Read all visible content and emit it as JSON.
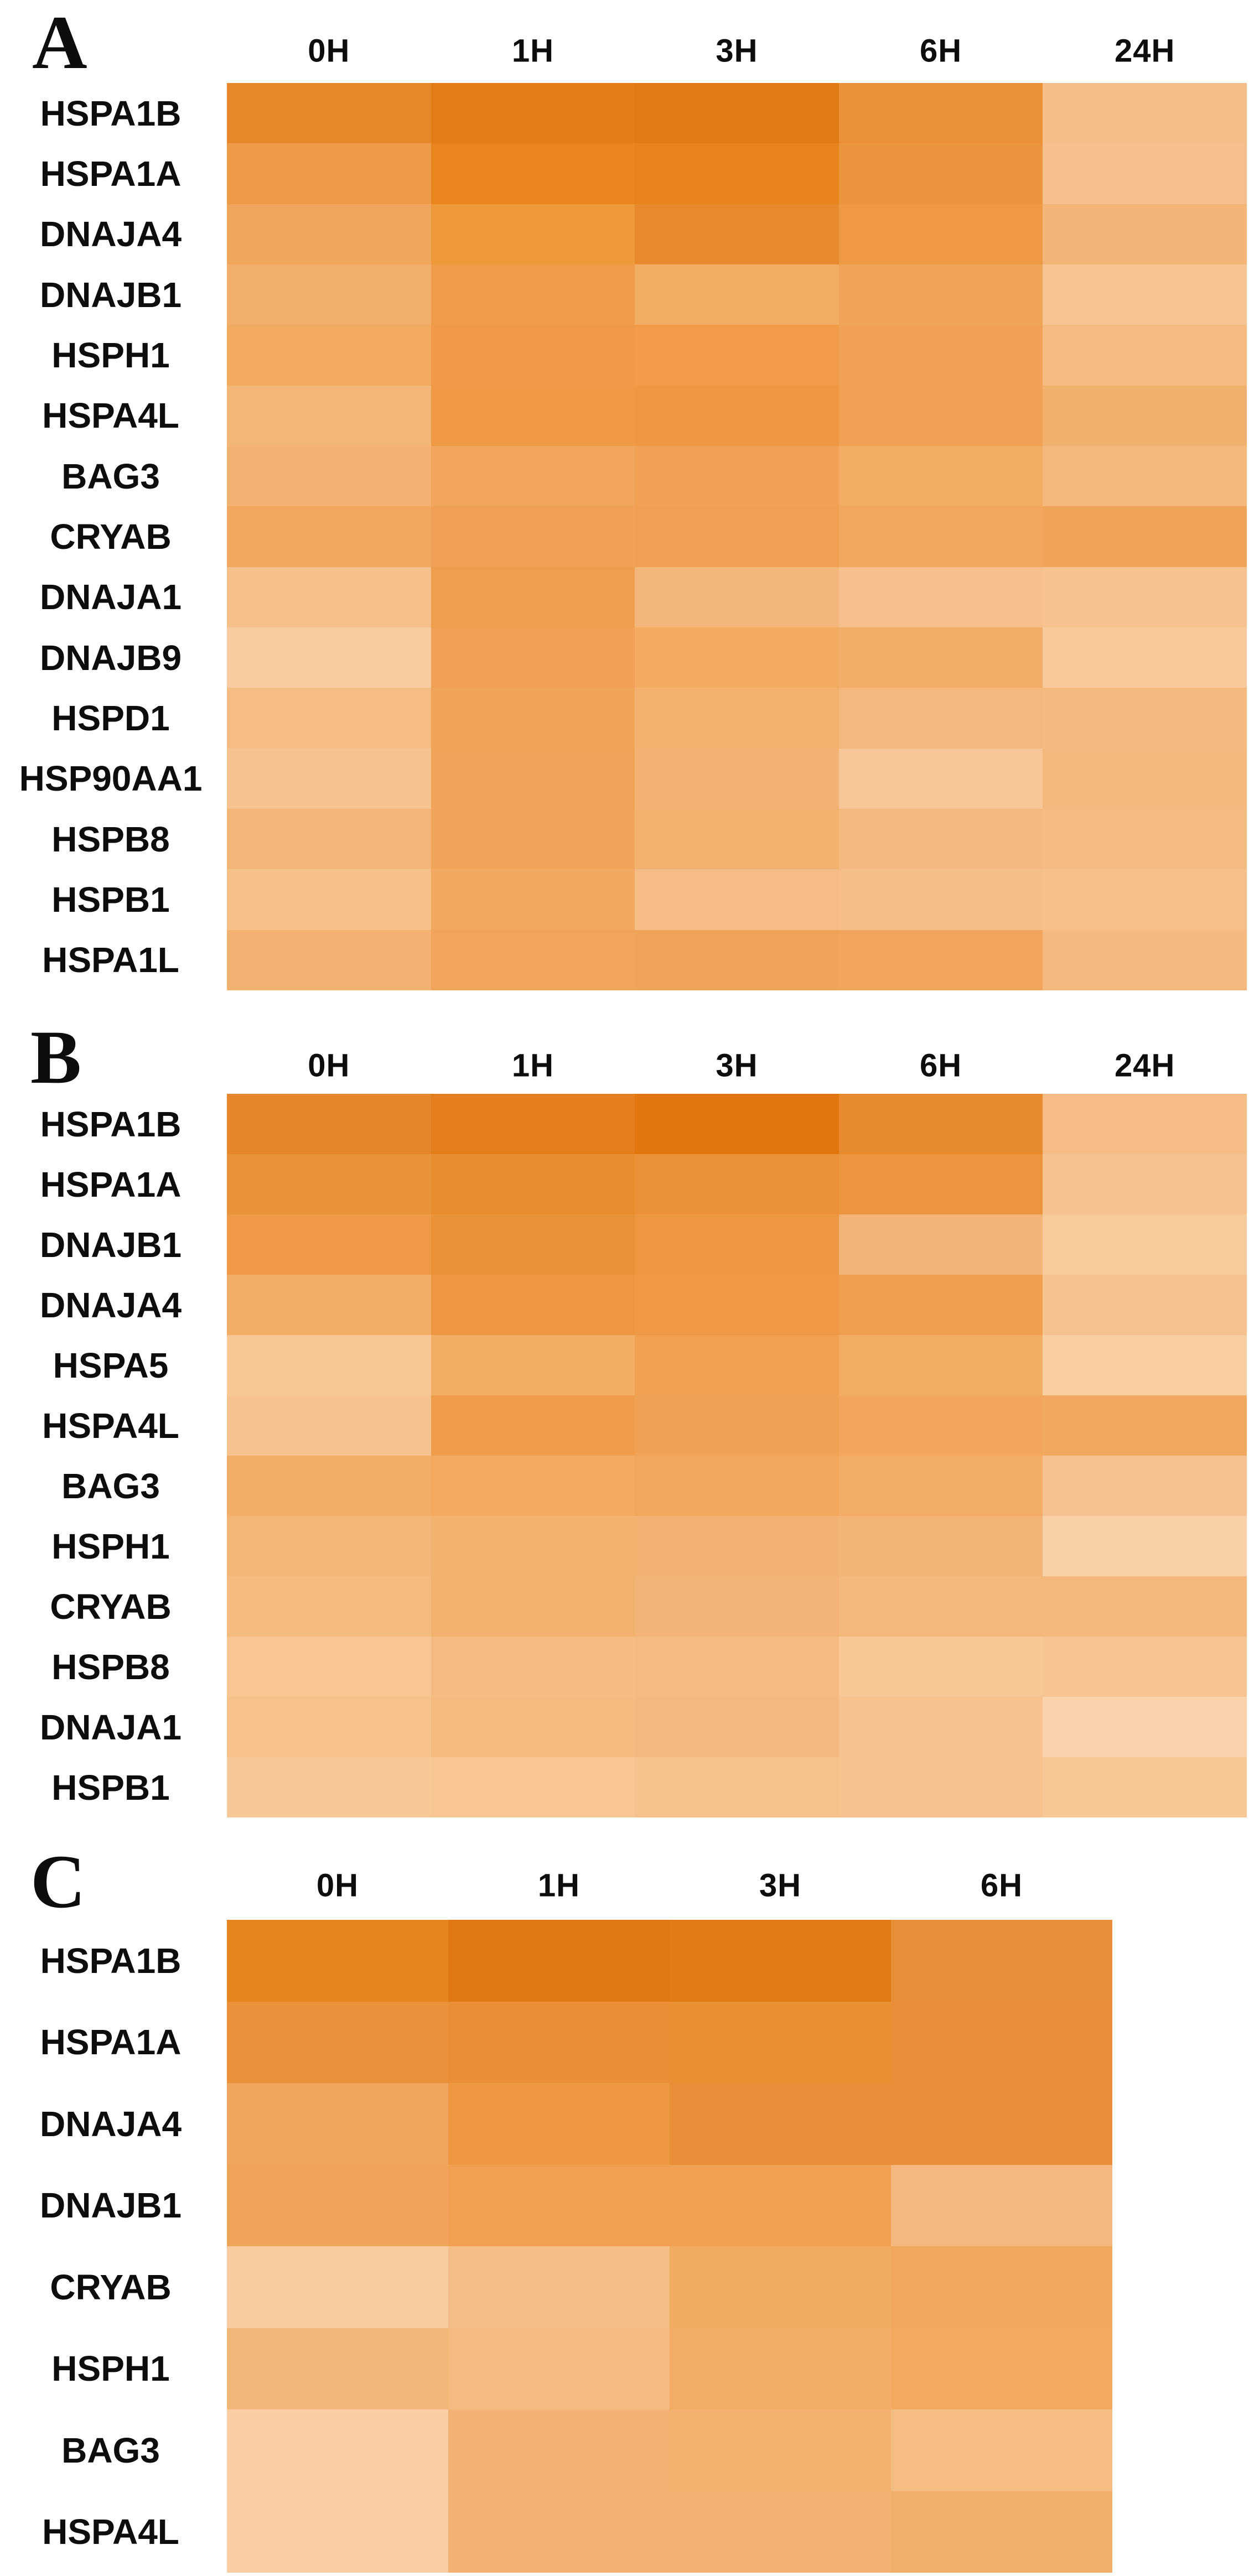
{
  "figure": {
    "panels": [
      "A",
      "B",
      "C"
    ]
  },
  "chart_data": [
    {
      "type": "heatmap",
      "panel": "A",
      "title": "",
      "legend": "none",
      "columns": [
        "0H",
        "1H",
        "3H",
        "6H",
        "24H"
      ],
      "rows": [
        "HSPA1B",
        "HSPA1A",
        "DNAJA4",
        "DNAJB1",
        "HSPH1",
        "HSPA4L",
        "BAG3",
        "CRYAB",
        "DNAJA1",
        "DNAJB9",
        "HSPD1",
        "HSP90AA1",
        "HSPB8",
        "HSPB1",
        "HSPA1L"
      ],
      "cell_colors": [
        [
          "#E8862A",
          "#E27D18",
          "#E17A12",
          "#EA9138",
          "#F5BD87"
        ],
        [
          "#EE9B49",
          "#E8851F",
          "#E6831C",
          "#EB9440",
          "#F5BE8A"
        ],
        [
          "#F0A55C",
          "#ED9839",
          "#E9892E",
          "#EE9A45",
          "#F3B478"
        ],
        [
          "#F2AE6B",
          "#EF9C48",
          "#F2AD65",
          "#F0A458",
          "#F6C491"
        ],
        [
          "#F2AA61",
          "#EE9A48",
          "#EF9B47",
          "#F0A153",
          "#F4BA80"
        ],
        [
          "#F4B677",
          "#EE9A44",
          "#EE9841",
          "#F0A153",
          "#F2B06E"
        ],
        [
          "#F3B272",
          "#F0A45C",
          "#F0A153",
          "#F2AC64",
          "#F4B87B"
        ],
        [
          "#F1A75F",
          "#F0A155",
          "#F0A052",
          "#F1A75E",
          "#F0A458"
        ],
        [
          "#F6C08A",
          "#EF9E4E",
          "#F4B77B",
          "#F6BF8C",
          "#F6C38F"
        ],
        [
          "#F8CCA0",
          "#F0A155",
          "#F2AB61",
          "#F2AE69",
          "#F8C99B"
        ],
        [
          "#F5BC84",
          "#F0A458",
          "#F3B170",
          "#F4B77E",
          "#F4B97E"
        ],
        [
          "#F6C28F",
          "#F0A45A",
          "#F3B271",
          "#F7C697",
          "#F4B87C"
        ],
        [
          "#F4B678",
          "#F0A45A",
          "#F3B170",
          "#F4B97E",
          "#F5BC82"
        ],
        [
          "#F6C189",
          "#F1A860",
          "#F5BC85",
          "#F5BD87",
          "#F5BF8A"
        ],
        [
          "#F3B272",
          "#F0A45C",
          "#F0A459",
          "#F0A45C",
          "#F4B97E"
        ]
      ]
    },
    {
      "type": "heatmap",
      "panel": "B",
      "title": "",
      "legend": "none",
      "columns": [
        "0H",
        "1H",
        "3H",
        "6H",
        "24H"
      ],
      "rows": [
        "HSPA1B",
        "HSPA1A",
        "DNAJB1",
        "DNAJA4",
        "HSPA5",
        "HSPA4L",
        "BAG3",
        "HSPH1",
        "CRYAB",
        "HSPB8",
        "DNAJA1",
        "HSPB1"
      ],
      "cell_colors": [
        [
          "#E6862A",
          "#E27E1B",
          "#E0760C",
          "#E88A2E",
          "#F5BD85"
        ],
        [
          "#EA9238",
          "#E88C30",
          "#EA9036",
          "#EB953F",
          "#F6C28D"
        ],
        [
          "#EE9A46",
          "#EA9238",
          "#ED9742",
          "#F3B478",
          "#F8CB9D"
        ],
        [
          "#F2AD66",
          "#ED9741",
          "#EE9A44",
          "#EF9F4D",
          "#F6C28F"
        ],
        [
          "#F7C795",
          "#F2AD65",
          "#EFA050",
          "#F2AC64",
          "#F8CDA1"
        ],
        [
          "#F6C38F",
          "#EF9D4B",
          "#F0A254",
          "#F1A65C",
          "#F1A961"
        ],
        [
          "#F2AE69",
          "#F2AB60",
          "#F1A75C",
          "#F2AC66",
          "#F6C28F"
        ],
        [
          "#F4B577",
          "#F3B270",
          "#F3B272",
          "#F3B374",
          "#F9D0A7"
        ],
        [
          "#F5BA7E",
          "#F3B170",
          "#F3B376",
          "#F4B87C",
          "#F4B87C"
        ],
        [
          "#F7C691",
          "#F5BC82",
          "#F4BA80",
          "#F7C795",
          "#F6C491"
        ],
        [
          "#F6C18A",
          "#F5BA7E",
          "#F4B97E",
          "#F6C28D",
          "#FAD2AB"
        ],
        [
          "#F7C897",
          "#F7C694",
          "#F6C28B",
          "#F6C28D",
          "#F7C795"
        ]
      ]
    },
    {
      "type": "heatmap",
      "panel": "C",
      "title": "",
      "legend": "none",
      "columns": [
        "0H",
        "1H",
        "3H",
        "6H"
      ],
      "rows": [
        "HSPA1B",
        "HSPA1A",
        "DNAJA4",
        "DNAJB1",
        "CRYAB",
        "HSPH1",
        "BAG3",
        "HSPA4L"
      ],
      "cell_colors": [
        [
          "#E6841F",
          "#DF7813",
          "#E07A12",
          "#E98F37"
        ],
        [
          "#EB9139",
          "#EA8F35",
          "#E98E33",
          "#E98E36"
        ],
        [
          "#F0A55E",
          "#EE9844",
          "#E98E36",
          "#E98E36"
        ],
        [
          "#F0A45A",
          "#F0A050",
          "#EFA050",
          "#F4B77D"
        ],
        [
          "#F8CBA0",
          "#F5BD86",
          "#F2AC62",
          "#F1A75E"
        ],
        [
          "#F4B77A",
          "#F5BA80",
          "#F2AC66",
          "#F1AA60"
        ],
        [
          "#F9CEA4",
          "#F3B273",
          "#F3B170",
          "#F5BC84"
        ],
        [
          "#F9CEA4",
          "#F3B273",
          "#F3B273",
          "#F2AE6B"
        ]
      ]
    }
  ]
}
